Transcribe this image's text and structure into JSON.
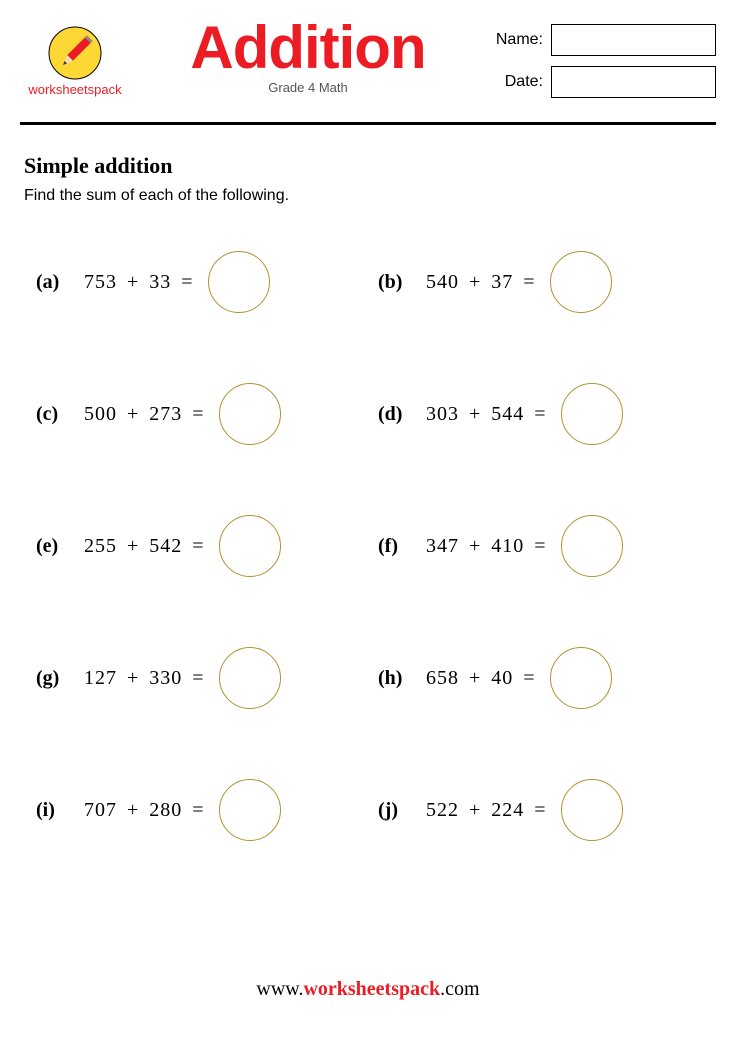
{
  "colors": {
    "accent": "#ec1c24",
    "circle_border": "#b3912f",
    "text": "#000000",
    "subtitle": "#555555",
    "background": "#ffffff"
  },
  "header": {
    "logo_label": "worksheetspack",
    "title": "Addition",
    "subtitle": "Grade 4 Math",
    "name_label": "Name:",
    "date_label": "Date:"
  },
  "section": {
    "title": "Simple addition",
    "instructions": "Find the sum of each of the following."
  },
  "problems": [
    {
      "label": "(a)",
      "a": 753,
      "b": 33
    },
    {
      "label": "(b)",
      "a": 540,
      "b": 37
    },
    {
      "label": "(c)",
      "a": 500,
      "b": 273
    },
    {
      "label": "(d)",
      "a": 303,
      "b": 544
    },
    {
      "label": "(e)",
      "a": 255,
      "b": 542
    },
    {
      "label": "(f)",
      "a": 347,
      "b": 410
    },
    {
      "label": "(g)",
      "a": 127,
      "b": 330
    },
    {
      "label": "(h)",
      "a": 658,
      "b": 40
    },
    {
      "label": "(i)",
      "a": 707,
      "b": 280
    },
    {
      "label": "(j)",
      "a": 522,
      "b": 224
    }
  ],
  "footer": {
    "prefix": "www.",
    "brand": "worksheetspack",
    "suffix": ".com"
  }
}
